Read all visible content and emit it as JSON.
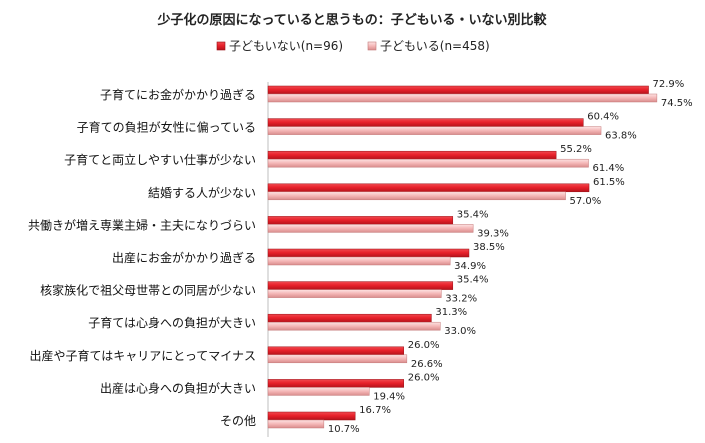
{
  "chart_data": {
    "type": "bar",
    "orientation": "horizontal",
    "title": "少子化の原因になっていると思うもの：子どもいる・いない別比較",
    "categories": [
      "子育てにお金がかかり過ぎる",
      "子育ての負担が女性に偏っている",
      "子育てと両立しやすい仕事が少ない",
      "結婚する人が少ない",
      "共働きが増え専業主婦・主夫になりづらい",
      "出産にお金がかかり過ぎる",
      "核家族化で祖父母世帯との同居が少ない",
      "子育ては心身への負担が大きい",
      "出産や子育てはキャリアにとってマイナス",
      "出産は心身への負担が大きい",
      "その他"
    ],
    "series": [
      {
        "name": "子どもいない(n=96)",
        "color": "#e8212b",
        "values": [
          72.9,
          60.4,
          55.2,
          61.5,
          35.4,
          38.5,
          35.4,
          31.3,
          26.0,
          26.0,
          16.7
        ],
        "labels": [
          "72.9%",
          "60.4%",
          "55.2%",
          "61.5%",
          "35.4%",
          "38.5%",
          "35.4%",
          "31.3%",
          "26.0%",
          "26.0%",
          "16.7%"
        ]
      },
      {
        "name": "子どもいる(n=458)",
        "color": "#f4b6b6",
        "values": [
          74.5,
          63.8,
          61.4,
          57.0,
          39.3,
          34.9,
          33.2,
          33.0,
          26.6,
          19.4,
          10.7
        ],
        "labels": [
          "74.5%",
          "63.8%",
          "61.4%",
          "57.0%",
          "39.3%",
          "34.9%",
          "33.2%",
          "33.0%",
          "26.6%",
          "19.4%",
          "10.7%"
        ]
      }
    ],
    "xlim": [
      0,
      100
    ],
    "grid": false,
    "legend": "top-center"
  }
}
